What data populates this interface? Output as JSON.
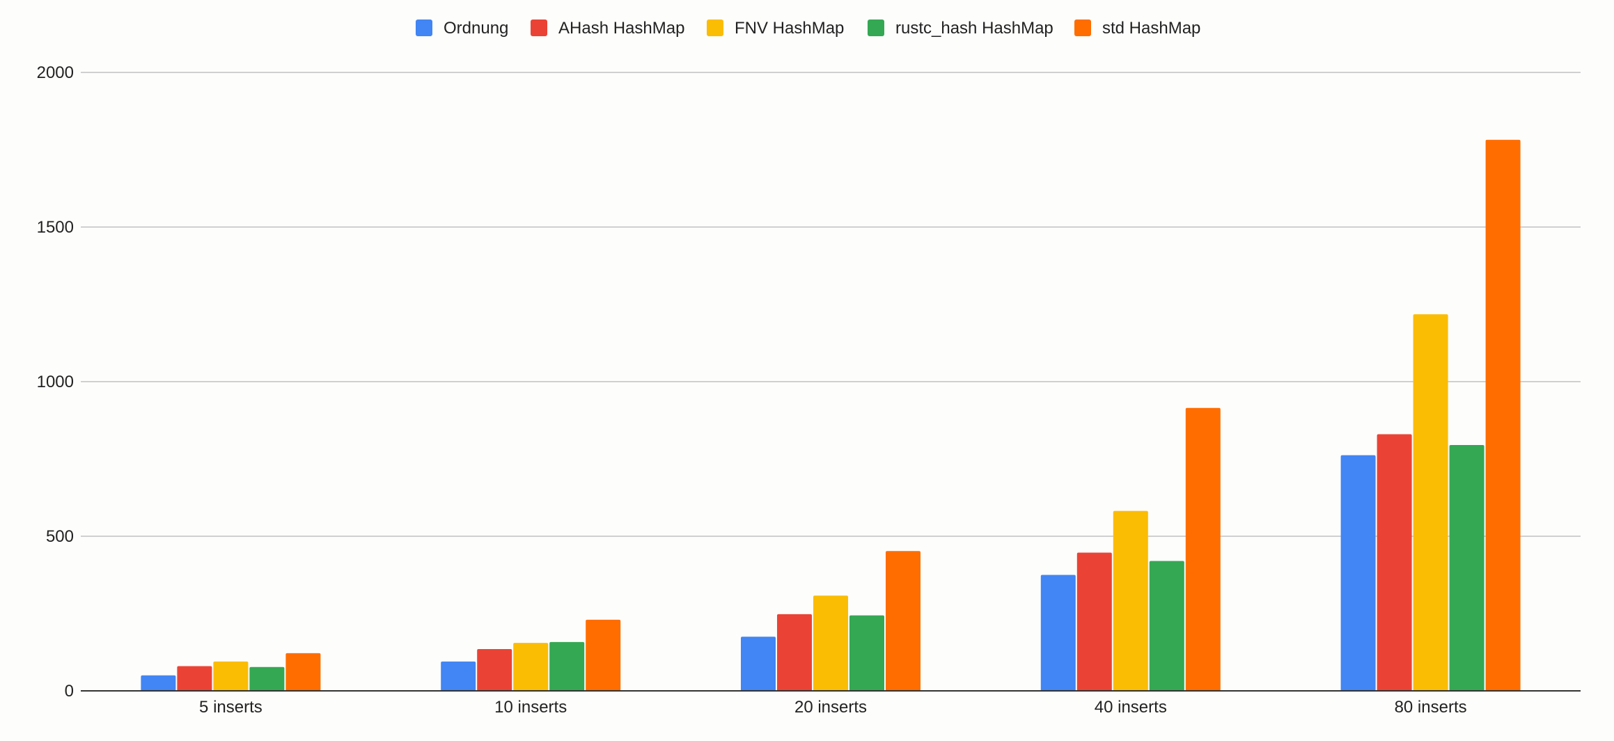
{
  "colors": {
    "background": "#fdfdfb",
    "grid": "#c2c2c2",
    "axis": "#333333",
    "text": "#222222"
  },
  "chart_data": {
    "type": "bar",
    "title": "",
    "xlabel": "",
    "ylabel": "",
    "categories": [
      "5 inserts",
      "10 inserts",
      "20 inserts",
      "40 inserts",
      "80 inserts"
    ],
    "series": [
      {
        "name": "Ordnung",
        "color": "#4285f4",
        "values": [
          50,
          95,
          175,
          375,
          762
        ]
      },
      {
        "name": "AHash HashMap",
        "color": "#ea4335",
        "values": [
          80,
          135,
          248,
          447,
          830
        ]
      },
      {
        "name": "FNV HashMap",
        "color": "#fbbc04",
        "values": [
          95,
          155,
          308,
          582,
          1218
        ]
      },
      {
        "name": "rustc_hash HashMap",
        "color": "#34a853",
        "values": [
          77,
          158,
          244,
          420,
          795
        ]
      },
      {
        "name": "std HashMap",
        "color": "#ff6d01",
        "values": [
          122,
          230,
          452,
          915,
          1782
        ]
      }
    ],
    "ylim": [
      0,
      2000
    ],
    "yticks": [
      0,
      500,
      1000,
      1500,
      2000
    ],
    "grid": true,
    "legend_position": "top-center"
  }
}
